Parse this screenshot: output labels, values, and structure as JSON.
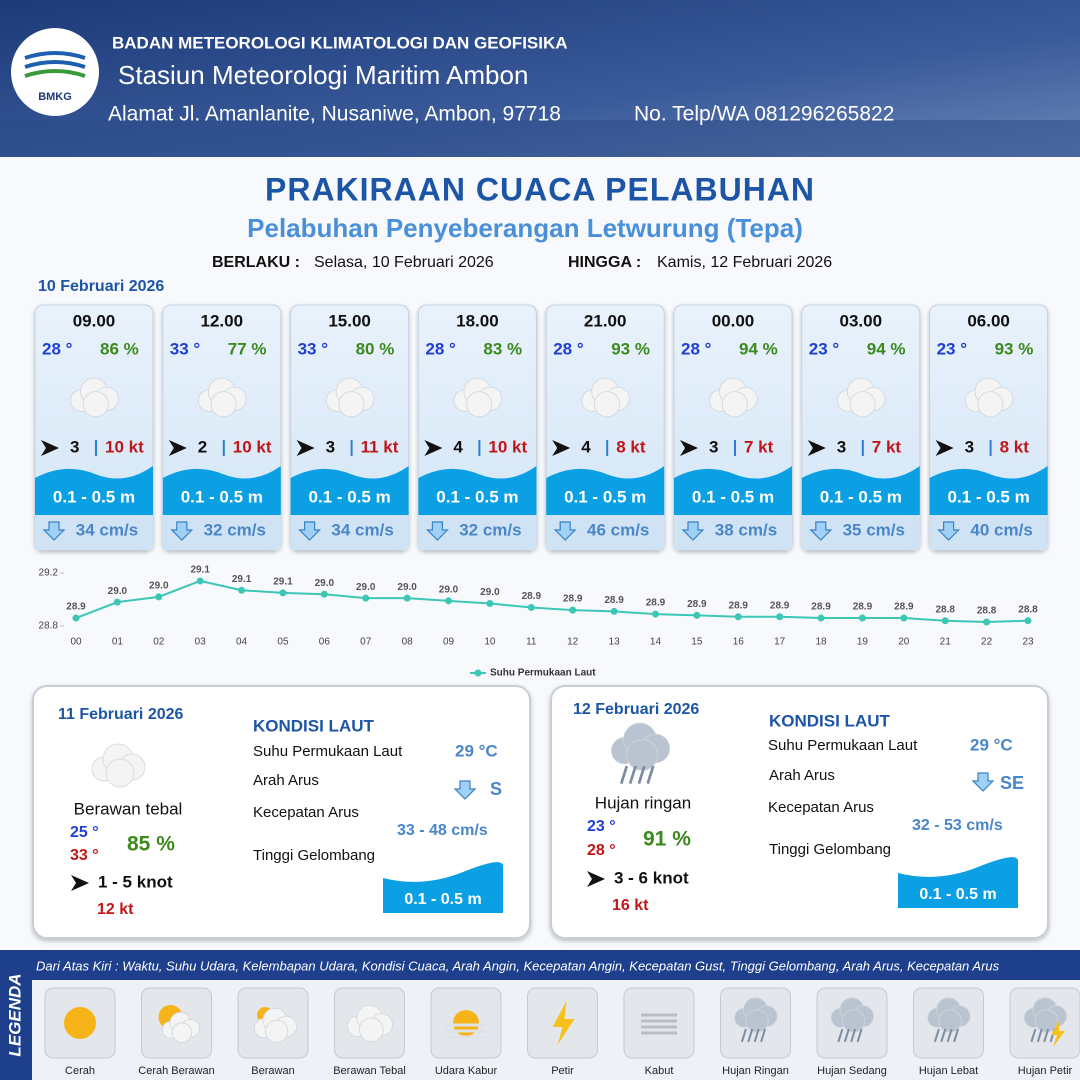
{
  "header": {
    "logo": "BMKG",
    "agency": "BADAN METEOROLOGI KLIMATOLOGI DAN GEOFISIKA",
    "station": "Stasiun Meteorologi Maritim Ambon",
    "address": "Alamat Jl. Amanlanite, Nusaniwe, Ambon, 97718",
    "phone": "No. Telp/WA  081296265822"
  },
  "title": "PRAKIRAAN CUACA PELABUHAN",
  "subtitle": "Pelabuhan Penyeberangan Letwurung (Tepa)",
  "validity": {
    "from_label": "BERLAKU :",
    "from": "Selasa, 10 Februari 2026",
    "to_label": "HINGGA :",
    "to": "Kamis, 12 Februari 2026"
  },
  "today": {
    "date": "10 Februari 2026",
    "forecasts": [
      {
        "time": "09.00",
        "temp": "28 °",
        "humidity": "86 %",
        "wind": "3",
        "gust": "10 kt",
        "wave": "0.1 - 0.5 m",
        "current": "34 cm/s"
      },
      {
        "time": "12.00",
        "temp": "33 °",
        "humidity": "77 %",
        "wind": "2",
        "gust": "10 kt",
        "wave": "0.1 - 0.5 m",
        "current": "32 cm/s"
      },
      {
        "time": "15.00",
        "temp": "33 °",
        "humidity": "80 %",
        "wind": "3",
        "gust": "11 kt",
        "wave": "0.1 - 0.5 m",
        "current": "34 cm/s"
      },
      {
        "time": "18.00",
        "temp": "28 °",
        "humidity": "83 %",
        "wind": "4",
        "gust": "10 kt",
        "wave": "0.1 - 0.5 m",
        "current": "32 cm/s"
      },
      {
        "time": "21.00",
        "temp": "28 °",
        "humidity": "93 %",
        "wind": "4",
        "gust": "8 kt",
        "wave": "0.1 - 0.5 m",
        "current": "46 cm/s"
      },
      {
        "time": "00.00",
        "temp": "28 °",
        "humidity": "94 %",
        "wind": "3",
        "gust": "7 kt",
        "wave": "0.1 - 0.5 m",
        "current": "38 cm/s"
      },
      {
        "time": "03.00",
        "temp": "23 °",
        "humidity": "94 %",
        "wind": "3",
        "gust": "7 kt",
        "wave": "0.1 - 0.5 m",
        "current": "35 cm/s"
      },
      {
        "time": "06.00",
        "temp": "23 °",
        "humidity": "93 %",
        "wind": "3",
        "gust": "8 kt",
        "wave": "0.1 - 0.5 m",
        "current": "40 cm/s"
      }
    ]
  },
  "chart_data": {
    "type": "line",
    "categories": [
      "00",
      "01",
      "02",
      "03",
      "04",
      "05",
      "06",
      "07",
      "08",
      "09",
      "10",
      "11",
      "12",
      "13",
      "14",
      "15",
      "16",
      "17",
      "18",
      "19",
      "20",
      "21",
      "22",
      "23"
    ],
    "series": [
      {
        "name": "Suhu Permukaan Laut",
        "color": "#3cc7b5",
        "values": [
          28.86,
          28.98,
          29.02,
          29.14,
          29.07,
          29.05,
          29.04,
          29.01,
          29.01,
          28.99,
          28.97,
          28.94,
          28.92,
          28.91,
          28.89,
          28.88,
          28.87,
          28.87,
          28.86,
          28.86,
          28.86,
          28.84,
          28.83,
          28.84
        ],
        "value_labels": [
          "28.9",
          "29.0",
          "29.0",
          "29.1",
          "29.1",
          "29.1",
          "29.0",
          "29.0",
          "29.0",
          "29.0",
          "29.0",
          "28.9",
          "28.9",
          "28.9",
          "28.9",
          "28.9",
          "28.9",
          "28.9",
          "28.9",
          "28.9",
          "28.9",
          "28.8",
          "28.8",
          "28.8"
        ]
      }
    ],
    "ylim": [
      28.8,
      29.2
    ],
    "yticks": [
      28.8,
      29.2
    ],
    "legend": "bottom"
  },
  "days": [
    {
      "date": "11 Februari 2026",
      "condition": "Berawan tebal",
      "temp_min": "25 °",
      "temp_max": "33 °",
      "humidity": "85 %",
      "wind": "1  - 5 knot",
      "gust": "12 kt",
      "sea_title": "KONDISI LAUT",
      "sst_label": "Suhu Permukaan Laut",
      "sst": "29 °C",
      "dir_label": "Arah Arus",
      "dir": "S",
      "speed_label": "Kecepatan Arus",
      "speed": "33 - 48 cm/s",
      "wave_label": "Tinggi Gelombang",
      "wave": "0.1 - 0.5 m"
    },
    {
      "date": "12 Februari 2026",
      "condition": "Hujan ringan",
      "temp_min": "23 °",
      "temp_max": "28 °",
      "humidity": "91 %",
      "wind": "3  - 6 knot",
      "gust": "16 kt",
      "sea_title": "KONDISI LAUT",
      "sst_label": "Suhu Permukaan Laut",
      "sst": "29 °C",
      "dir_label": "Arah Arus",
      "dir": "SE",
      "speed_label": "Kecepatan Arus",
      "speed": "32 - 53 cm/s",
      "wave_label": "Tinggi Gelombang",
      "wave": "0.1 - 0.5 m"
    }
  ],
  "legend": {
    "title": "LEGENDA",
    "note": "Dari Atas Kiri : Waktu, Suhu Udara, Kelembapan Udara, Kondisi Cuaca, Arah Angin, Kecepatan Angin, Kecepatan Gust, Tinggi Gelombang, Arah Arus, Kecepatan Arus",
    "items": [
      "Cerah",
      "Cerah Berawan",
      "Berawan",
      "Berawan Tebal",
      "Udara Kabur",
      "Petir",
      "Kabut",
      "Hujan Ringan",
      "Hujan Sedang",
      "Hujan Lebat",
      "Hujan Petir"
    ]
  }
}
